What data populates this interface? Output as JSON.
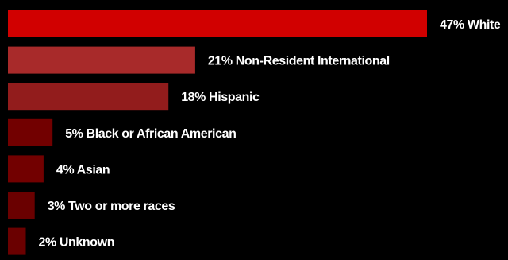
{
  "chart_data": {
    "type": "bar",
    "orientation": "horizontal",
    "title": "",
    "xlabel": "",
    "ylabel": "",
    "xlim": [
      0,
      47
    ],
    "grid": false,
    "legend": "none",
    "categories": [
      "White",
      "Non-Resident International",
      "Hispanic",
      "Black or African American",
      "Asian",
      "Two or more races",
      "Unknown"
    ],
    "values": [
      47,
      21,
      18,
      5,
      4,
      3,
      2
    ],
    "labels": [
      "47% White",
      "21% Non-Resident International",
      "18% Hispanic",
      "5% Black or African American",
      "4% Asian",
      "3% Two or more races",
      "2% Unknown"
    ],
    "colors": [
      "#d10000",
      "#a82a2a",
      "#921c1c",
      "#720000",
      "#720000",
      "#6a0000",
      "#6a0000"
    ],
    "background": "#000000",
    "label_color": "#ffffff"
  }
}
